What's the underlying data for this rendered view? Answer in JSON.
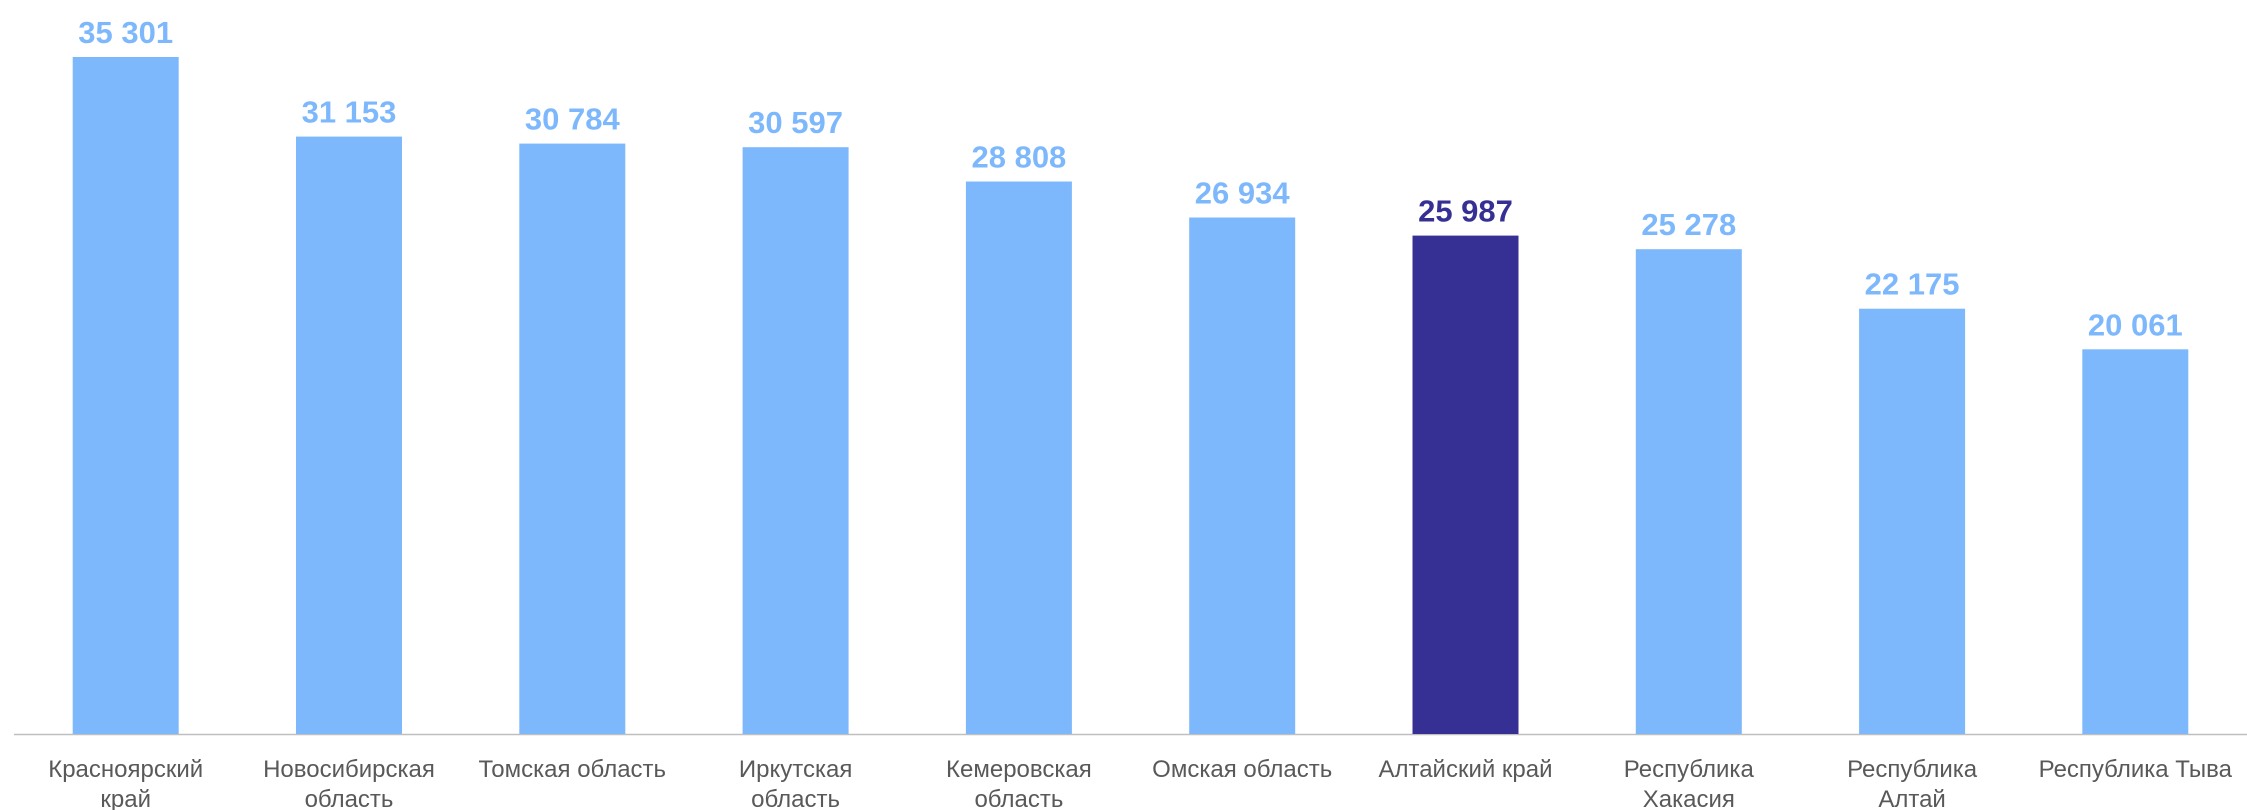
{
  "chart_data": {
    "type": "bar",
    "title": "",
    "xlabel": "",
    "ylabel": "",
    "ylim": [
      0,
      35301
    ],
    "grid": false,
    "legend": "none",
    "categories": [
      [
        "Красноярский",
        "край"
      ],
      [
        "Новосибирская",
        "область"
      ],
      [
        "Томская область"
      ],
      [
        "Иркутская",
        "область"
      ],
      [
        "Кемеровская",
        "область"
      ],
      [
        "Омская область"
      ],
      [
        "Алтайский край"
      ],
      [
        "Республика",
        "Хакасия"
      ],
      [
        "Республика",
        "Алтай"
      ],
      [
        "Республика Тыва"
      ]
    ],
    "values": [
      35301,
      31153,
      30784,
      30597,
      28808,
      26934,
      25987,
      25278,
      22175,
      20061
    ],
    "value_labels": [
      "35 301",
      "31 153",
      "30 784",
      "30 597",
      "28 808",
      "26 934",
      "25 987",
      "25 278",
      "22 175",
      "20 061"
    ],
    "highlight_index": 6,
    "colors": {
      "bar": "#7EB8FC",
      "highlight": "#363094",
      "axis": "#BFBFBF",
      "category_text": "#595959"
    }
  }
}
